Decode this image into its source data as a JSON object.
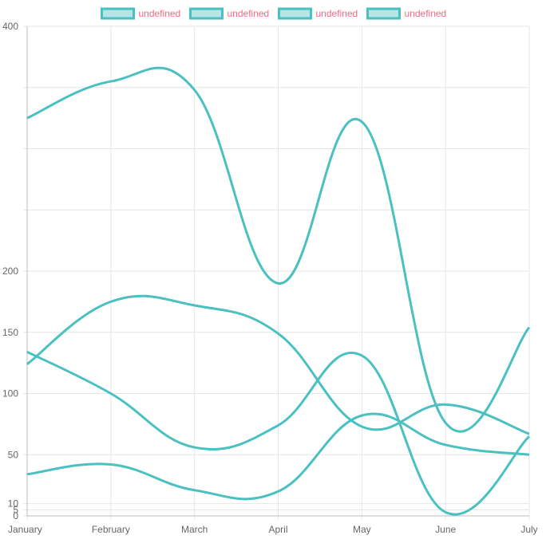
{
  "chart_data": {
    "type": "line",
    "categories": [
      "January",
      "February",
      "March",
      "April",
      "May",
      "June",
      "July"
    ],
    "y_ticks": [
      0,
      5,
      10,
      50,
      100,
      150,
      200,
      400
    ],
    "ylim": [
      0,
      400
    ],
    "grid": true,
    "legend_placement": "top-center",
    "series": [
      {
        "name": "undefined",
        "values": [
          325,
          355,
          348,
          190,
          322,
          76,
          154
        ]
      },
      {
        "name": "undefined",
        "values": [
          124,
          175,
          172,
          149,
          73,
          91,
          67
        ]
      },
      {
        "name": "undefined",
        "values": [
          134,
          100,
          56,
          74,
          131,
          3,
          65
        ]
      },
      {
        "name": "undefined",
        "values": [
          34,
          42,
          21,
          20,
          82,
          58,
          50
        ]
      }
    ],
    "colors": {
      "line": "#4bc0c0",
      "legend_fill": "#b5e5e5",
      "legend_text": "#ff6384",
      "grid": "#e6e6e6",
      "axis": "#666666"
    }
  }
}
